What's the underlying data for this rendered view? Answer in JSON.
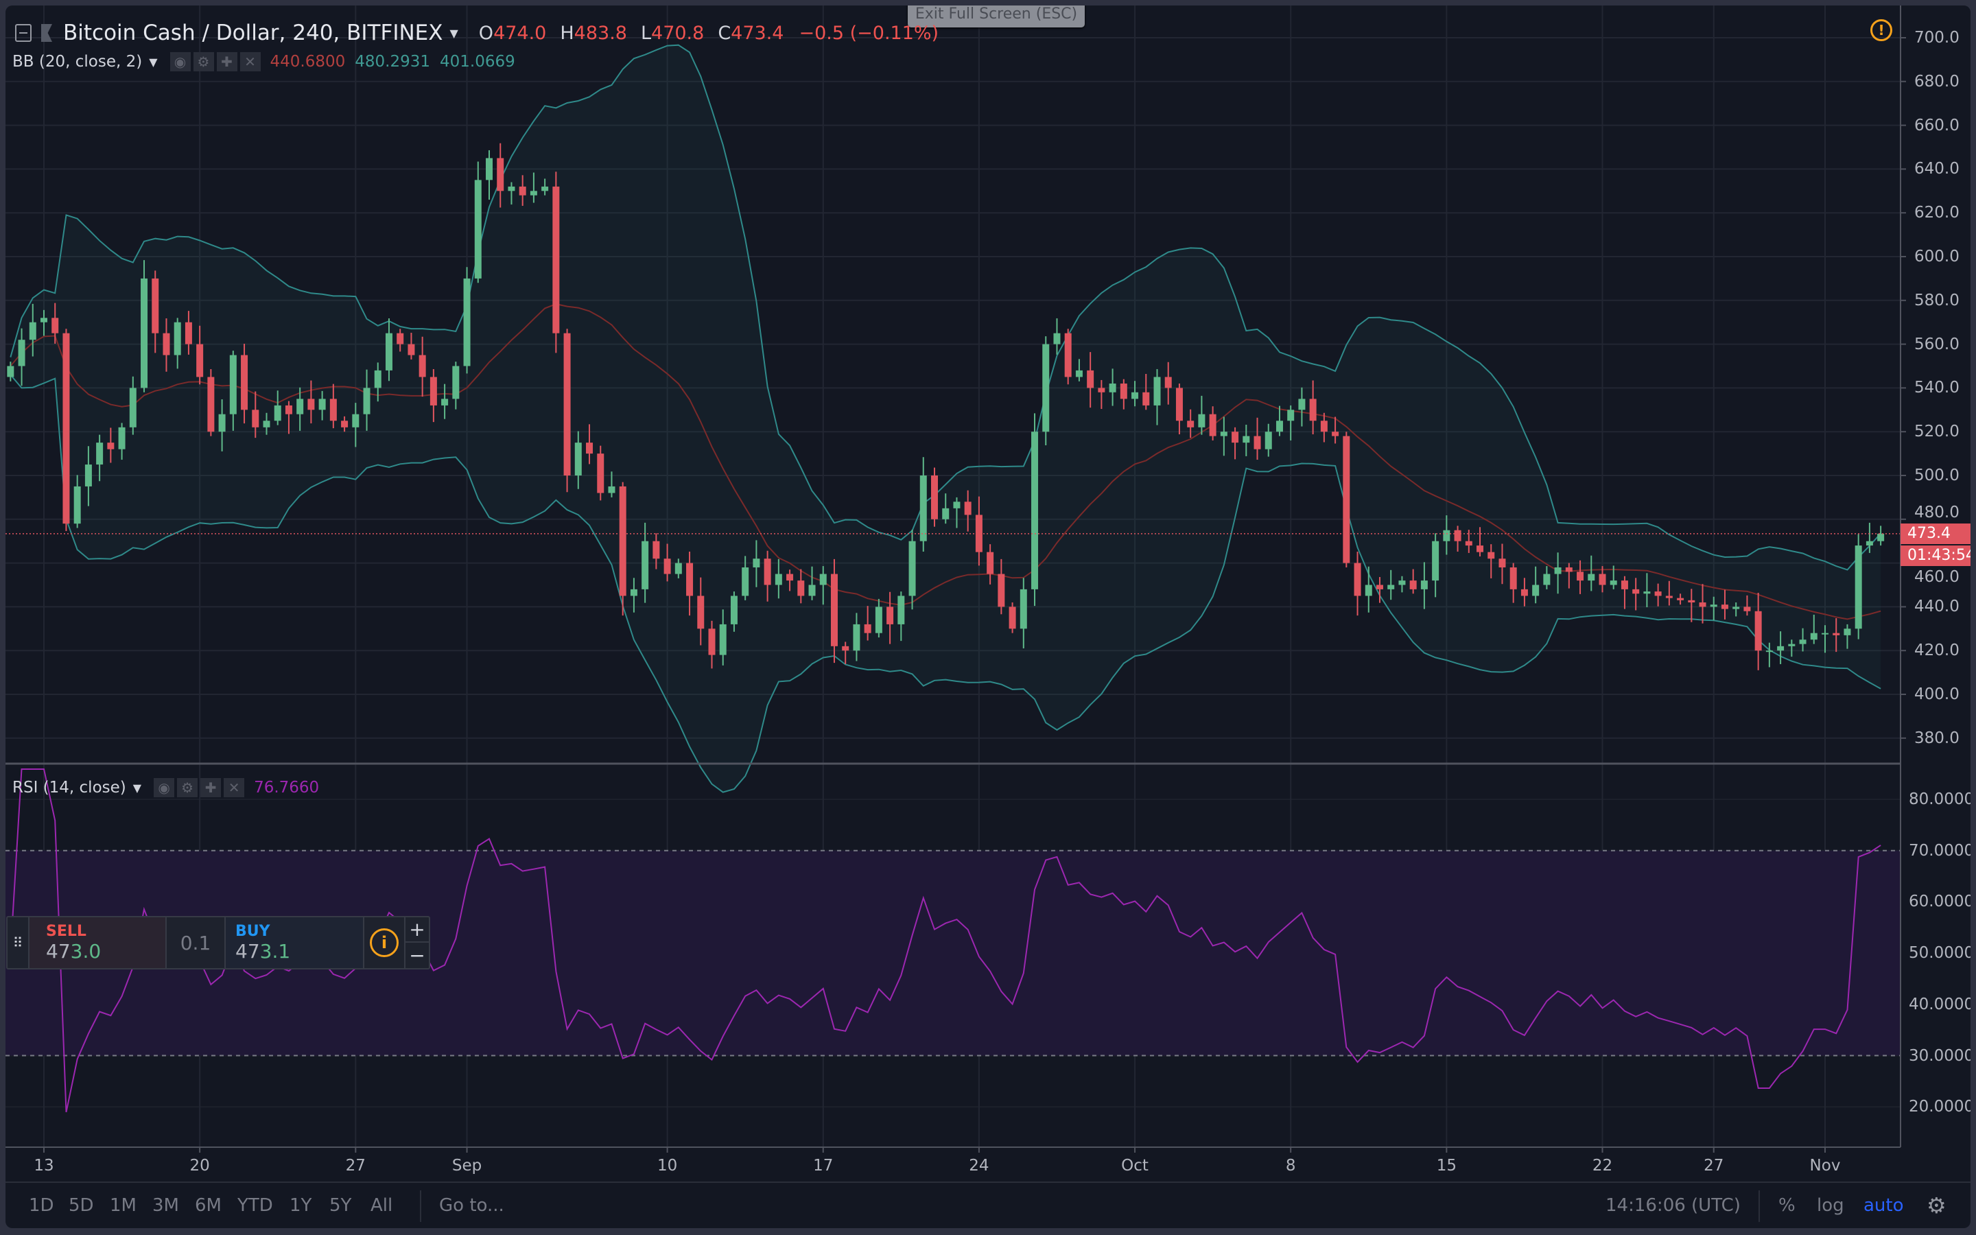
{
  "tooltip": "Exit Full Screen (ESC)",
  "header": {
    "symbol": "Bitcoin Cash / Dollar, 240, BITFINEX",
    "open_label": "O",
    "open": "474.0",
    "high_label": "H",
    "high": "483.8",
    "low_label": "L",
    "low": "470.8",
    "close_label": "C",
    "close": "473.4",
    "change": "−0.5 (−0.11%)"
  },
  "bb": {
    "name": "BB (20, close, 2)",
    "basis": "440.6800",
    "upper": "480.2931",
    "lower": "401.0669"
  },
  "rsi": {
    "name": "RSI (14, close)",
    "value": "76.7660"
  },
  "price_axis": {
    "labels": [
      "700.0",
      "680.0",
      "660.0",
      "640.0",
      "620.0",
      "600.0",
      "580.0",
      "560.0",
      "540.0",
      "520.0",
      "500.0",
      "480.0",
      "460.0",
      "440.0",
      "420.0",
      "400.0",
      "380.0"
    ],
    "last_price": "473.4",
    "countdown": "01:43:54"
  },
  "rsi_axis": {
    "labels": [
      "80.0000",
      "70.0000",
      "60.0000",
      "50.0000",
      "40.0000",
      "30.0000",
      "20.0000"
    ]
  },
  "time_axis": [
    {
      "label": "13",
      "date": "08-13"
    },
    {
      "label": "20",
      "date": "08-20"
    },
    {
      "label": "27",
      "date": "08-27"
    },
    {
      "label": "Sep",
      "date": "09-01"
    },
    {
      "label": "10",
      "date": "09-10"
    },
    {
      "label": "17",
      "date": "09-17"
    },
    {
      "label": "24",
      "date": "09-24"
    },
    {
      "label": "Oct",
      "date": "10-01"
    },
    {
      "label": "8",
      "date": "10-08"
    },
    {
      "label": "15",
      "date": "10-15"
    },
    {
      "label": "22",
      "date": "10-22"
    },
    {
      "label": "27",
      "date": "10-27"
    },
    {
      "label": "Nov",
      "date": "11-01"
    }
  ],
  "trade": {
    "sell_label": "SELL",
    "sell_price_a": "47",
    "sell_price_b": "3.0",
    "qty": "0.1",
    "buy_label": "BUY",
    "buy_price_a": "47",
    "buy_price_b": "3.1",
    "plus": "+",
    "minus": "−"
  },
  "toolbar": {
    "ranges": [
      "1D",
      "5D",
      "1M",
      "3M",
      "6M",
      "YTD",
      "1Y",
      "5Y",
      "All"
    ],
    "goto": "Go to...",
    "clock": "14:16:06 (UTC)",
    "percent": "%",
    "log": "log",
    "auto": "auto"
  },
  "colors": {
    "up": "#5fb98a",
    "down": "#e0555f",
    "bb_band": "#2f8a8a",
    "bb_basis": "#7a2a2a",
    "rsi": "#9c27b0",
    "accent": "#2962ff",
    "warning": "#f7a21b"
  },
  "chart_data": {
    "type": "candlestick",
    "symbol": "Bitcoin Cash / Dollar",
    "exchange": "BITFINEX",
    "start": "08-11 12:00",
    "step_hours": 12,
    "closes": [
      550,
      562,
      570,
      572,
      565,
      478,
      495,
      505,
      515,
      512,
      522,
      540,
      590,
      565,
      555,
      570,
      560,
      545,
      520,
      528,
      555,
      530,
      522,
      525,
      532,
      528,
      535,
      530,
      535,
      525,
      522,
      528,
      540,
      548,
      565,
      560,
      555,
      545,
      532,
      535,
      550,
      590,
      635,
      645,
      630,
      632,
      628,
      630,
      632,
      565,
      500,
      515,
      510,
      492,
      495,
      445,
      448,
      470,
      462,
      455,
      460,
      445,
      430,
      418,
      432,
      445,
      458,
      462,
      450,
      455,
      452,
      445,
      450,
      455,
      422,
      420,
      432,
      428,
      440,
      432,
      445,
      470,
      500,
      480,
      485,
      488,
      482,
      465,
      455,
      440,
      430,
      448,
      520,
      560,
      565,
      545,
      548,
      540,
      538,
      542,
      535,
      538,
      532,
      545,
      540,
      525,
      522,
      528,
      518,
      520,
      515,
      518,
      512,
      520,
      525,
      530,
      535,
      525,
      520,
      518,
      460,
      445,
      450,
      448,
      450,
      452,
      448,
      452,
      470,
      475,
      470,
      468,
      465,
      462,
      458,
      448,
      445,
      450,
      455,
      458,
      456,
      452,
      455,
      450,
      452,
      448,
      446,
      447,
      445,
      444,
      443,
      442,
      440,
      441,
      439,
      440,
      438,
      420,
      420,
      422,
      423,
      425,
      428,
      428,
      427,
      430,
      468,
      470,
      473.4
    ],
    "price_range": [
      370,
      710
    ],
    "rsi_range": [
      15,
      85
    ],
    "rsi_levels": [
      70,
      30
    ],
    "indicators": [
      "BB (20, close, 2)",
      "RSI (14, close)"
    ]
  }
}
